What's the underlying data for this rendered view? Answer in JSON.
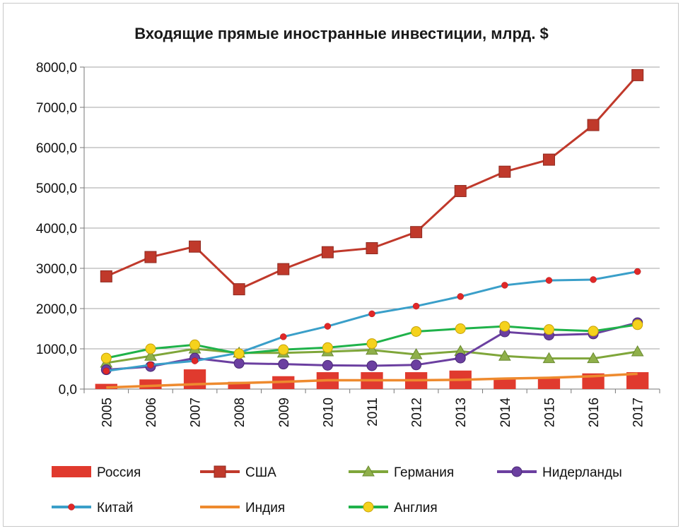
{
  "chart_data": {
    "type": "bar+line",
    "title": "Входящие прямые иностранные инвестиции, млрд. $",
    "xlabel": "",
    "ylabel": "",
    "ylim": [
      0,
      8000
    ],
    "y_ticks": [
      "0,0",
      "1000,0",
      "2000,0",
      "3000,0",
      "4000,0",
      "5000,0",
      "6000,0",
      "7000,0",
      "8000,0"
    ],
    "y_tick_values": [
      0,
      1000,
      2000,
      3000,
      4000,
      5000,
      6000,
      7000,
      8000
    ],
    "grid": true,
    "legend_position": "bottom",
    "categories": [
      "2005",
      "2006",
      "2007",
      "2008",
      "2009",
      "2010",
      "2011",
      "2012",
      "2013",
      "2014",
      "2015",
      "2016",
      "2017"
    ],
    "series": [
      {
        "name": "Россия",
        "kind": "bar",
        "color": "#e03a2e",
        "values": [
          130,
          240,
          490,
          180,
          320,
          420,
          420,
          420,
          460,
          260,
          260,
          390,
          420
        ]
      },
      {
        "name": "США",
        "kind": "line",
        "color": "#c0392b",
        "marker": "square",
        "values": [
          2800,
          3280,
          3540,
          2480,
          2980,
          3400,
          3500,
          3900,
          4920,
          5400,
          5700,
          6560,
          7800
        ]
      },
      {
        "name": "Германия",
        "kind": "line",
        "color": "#7fa63a",
        "marker": "triangle",
        "values": [
          650,
          820,
          1000,
          900,
          900,
          930,
          970,
          860,
          940,
          820,
          760,
          760,
          930
        ]
      },
      {
        "name": "Нидерланды",
        "kind": "line",
        "color": "#6b3fa0",
        "marker": "circle",
        "values": [
          480,
          560,
          770,
          640,
          620,
          590,
          580,
          600,
          770,
          1420,
          1340,
          1370,
          1650
        ]
      },
      {
        "name": "Китай",
        "kind": "line",
        "color": "#3a9fc9",
        "marker": "dot",
        "values": [
          450,
          600,
          700,
          900,
          1300,
          1560,
          1870,
          2060,
          2300,
          2580,
          2700,
          2720,
          2920
        ]
      },
      {
        "name": "Индия",
        "kind": "line",
        "color": "#ee8a2e",
        "marker": "none",
        "values": [
          40,
          80,
          120,
          150,
          180,
          220,
          220,
          220,
          230,
          260,
          280,
          320,
          380
        ]
      },
      {
        "name": "Англия",
        "kind": "line",
        "color": "#1fb24a",
        "marker": "yellow-circle",
        "values": [
          770,
          1000,
          1100,
          880,
          980,
          1030,
          1130,
          1430,
          1500,
          1560,
          1480,
          1440,
          1600
        ]
      }
    ]
  }
}
